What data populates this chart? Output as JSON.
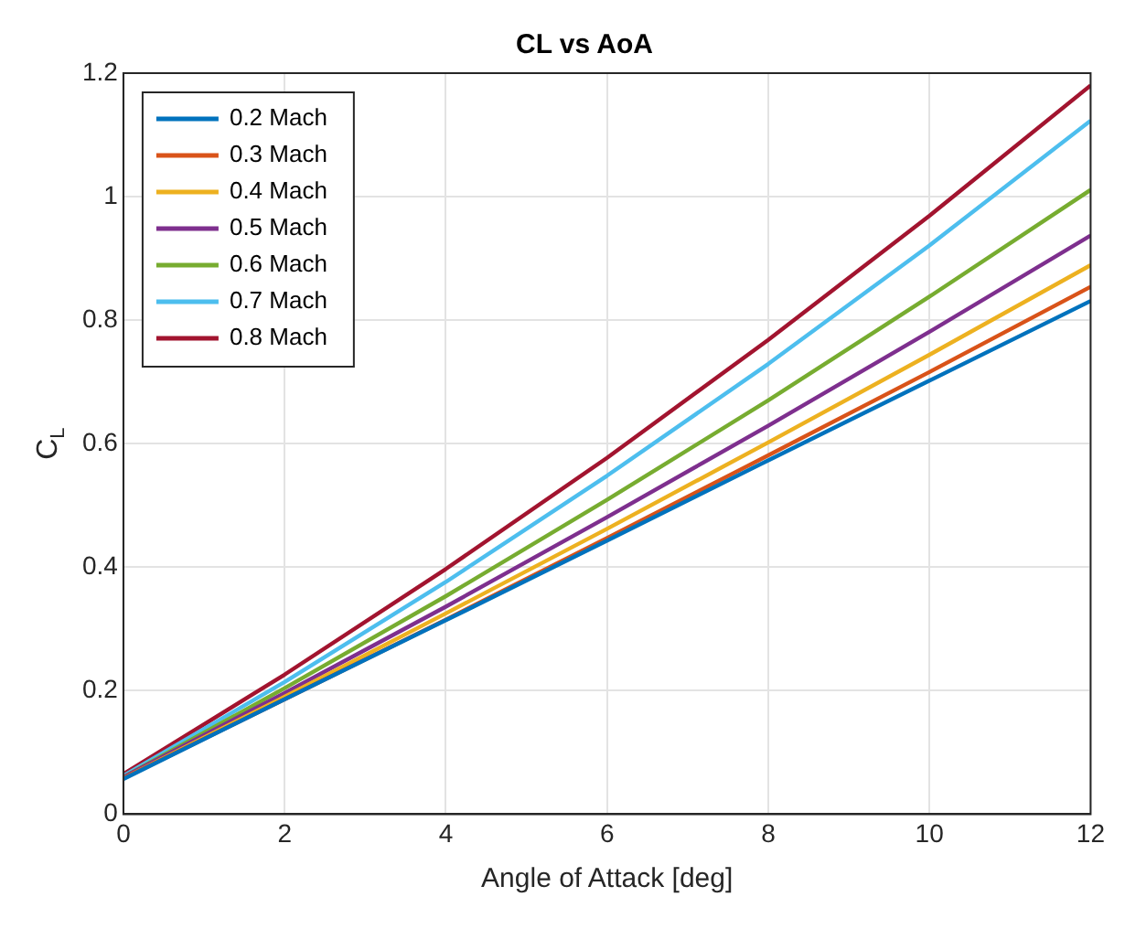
{
  "chart_data": {
    "type": "line",
    "title": "CL vs AoA",
    "xlabel": "Angle of Attack [deg]",
    "ylabel": "C$_{L}$",
    "x": [
      0,
      2,
      4,
      6,
      8,
      10,
      12
    ],
    "series": [
      {
        "name": "0.2 Mach",
        "color": "#0072bd",
        "values": [
          0.057,
          0.186,
          0.314,
          0.443,
          0.573,
          0.702,
          0.831
        ]
      },
      {
        "name": "0.3 Mach",
        "color": "#d95319",
        "values": [
          0.058,
          0.186,
          0.315,
          0.447,
          0.581,
          0.716,
          0.854
        ]
      },
      {
        "name": "0.4 Mach",
        "color": "#edb120",
        "values": [
          0.058,
          0.19,
          0.325,
          0.462,
          0.602,
          0.744,
          0.889
        ]
      },
      {
        "name": "0.5 Mach",
        "color": "#7e2f8e",
        "values": [
          0.06,
          0.196,
          0.336,
          0.481,
          0.629,
          0.781,
          0.937
        ]
      },
      {
        "name": "0.6 Mach",
        "color": "#77ac30",
        "values": [
          0.06,
          0.204,
          0.353,
          0.509,
          0.67,
          0.838,
          1.011
        ]
      },
      {
        "name": "0.7 Mach",
        "color": "#4dbeee",
        "values": [
          0.062,
          0.214,
          0.376,
          0.548,
          0.729,
          0.921,
          1.123
        ]
      },
      {
        "name": "0.8 Mach",
        "color": "#a2142f",
        "values": [
          0.065,
          0.226,
          0.397,
          0.577,
          0.768,
          0.969,
          1.18
        ]
      }
    ],
    "xlim": [
      0,
      12
    ],
    "xticks": [
      0,
      2,
      4,
      6,
      8,
      10,
      12
    ],
    "ylim": [
      0,
      1.2
    ],
    "yticks": [
      0,
      0.2,
      0.4,
      0.6,
      0.8,
      1,
      1.2
    ],
    "grid": true,
    "legend": "top left",
    "line_style": "solid",
    "marker": "none"
  }
}
